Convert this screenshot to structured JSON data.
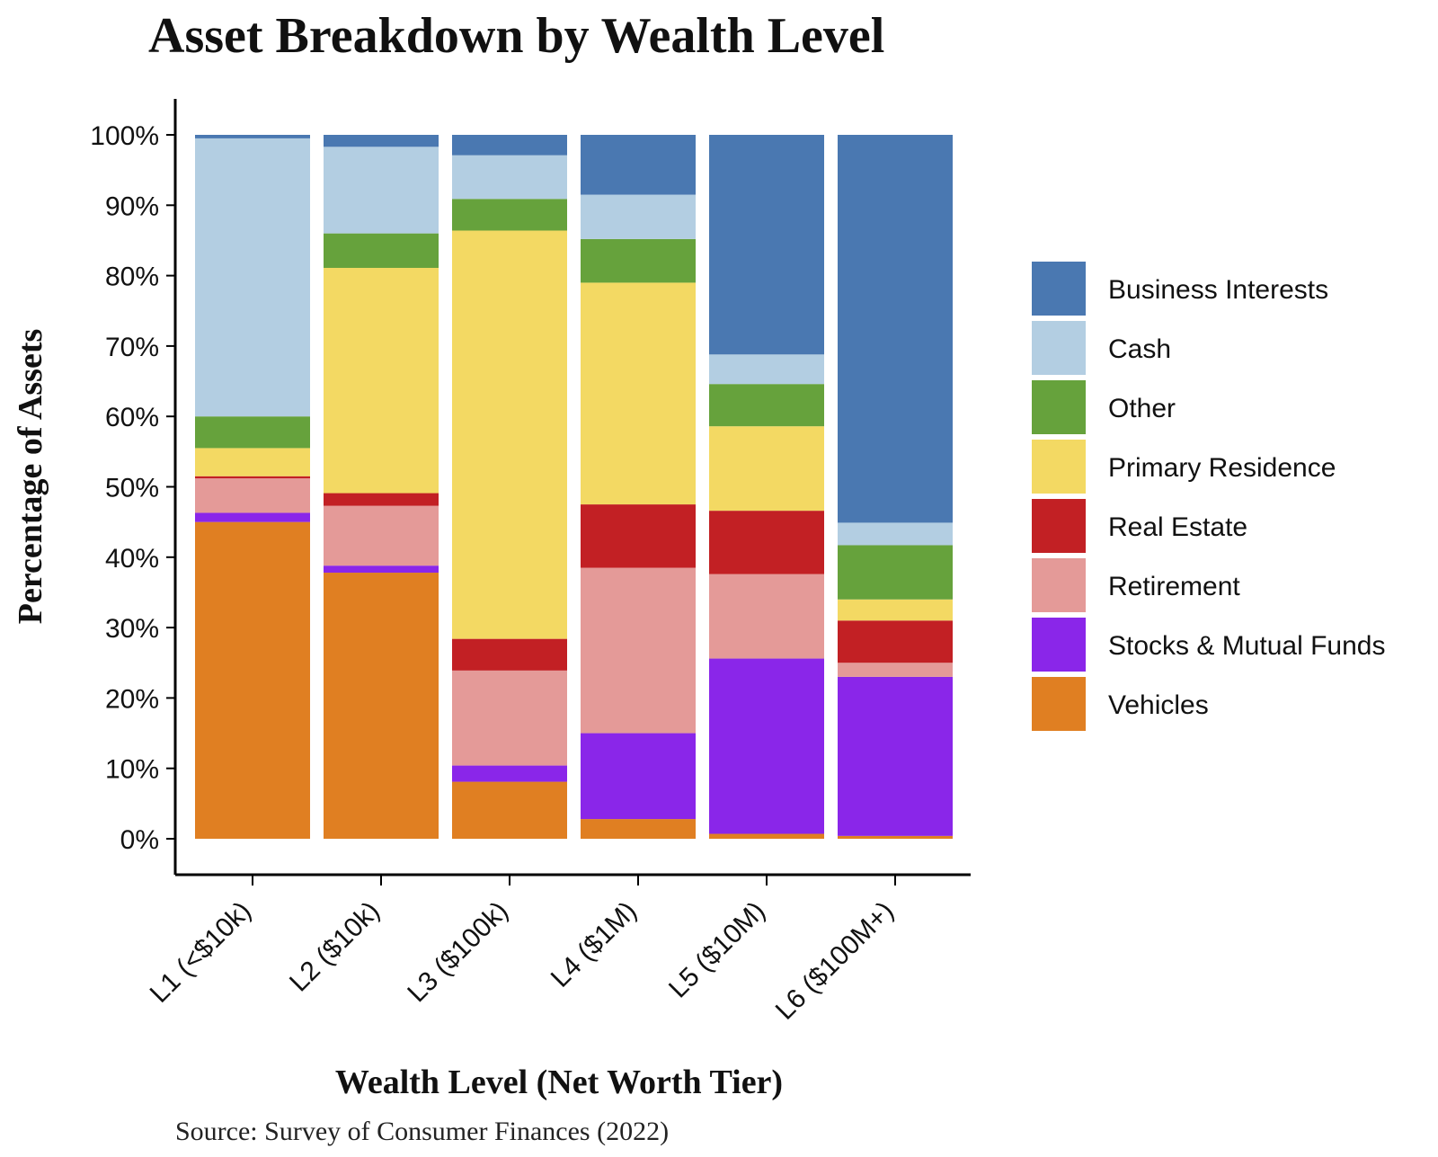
{
  "chart_data": {
    "type": "bar",
    "stacked": true,
    "normalized": true,
    "title": "Asset Breakdown by Wealth Level",
    "xlabel": "Wealth Level (Net Worth Tier)",
    "ylabel": "Percentage of Assets",
    "source": "Source: Survey of Consumer Finances (2022)",
    "ylim": [
      0,
      100
    ],
    "yticks": [
      0,
      10,
      20,
      30,
      40,
      50,
      60,
      70,
      80,
      90,
      100
    ],
    "ytick_labels": [
      "0%",
      "10%",
      "20%",
      "30%",
      "40%",
      "50%",
      "60%",
      "70%",
      "80%",
      "90%",
      "100%"
    ],
    "categories": [
      "L1 (<$10k)",
      "L2 ($10k)",
      "L3 ($100k)",
      "L4 ($1M)",
      "L5 ($10M)",
      "L6 ($100M+)"
    ],
    "legend_position": "right",
    "series": [
      {
        "name": "Vehicles",
        "color": "#E07F22",
        "values": [
          45.0,
          37.8,
          8.1,
          2.8,
          0.7,
          0.4
        ]
      },
      {
        "name": "Stocks & Mutual Funds",
        "color": "#8A26E9",
        "values": [
          1.3,
          1.0,
          2.3,
          12.2,
          24.9,
          22.6
        ]
      },
      {
        "name": "Retirement",
        "color": "#E49A98",
        "values": [
          4.9,
          8.5,
          13.5,
          23.5,
          12.0,
          2.0
        ]
      },
      {
        "name": "Real Estate",
        "color": "#C22024",
        "values": [
          0.3,
          1.8,
          4.5,
          9.0,
          9.0,
          6.0
        ]
      },
      {
        "name": "Primary Residence",
        "color": "#F3D963",
        "values": [
          4.0,
          32.0,
          58.0,
          31.5,
          12.0,
          3.0
        ]
      },
      {
        "name": "Other",
        "color": "#66A23C",
        "values": [
          4.5,
          4.9,
          4.5,
          6.2,
          6.0,
          7.7
        ]
      },
      {
        "name": "Cash",
        "color": "#B3CEE2",
        "values": [
          39.5,
          12.3,
          6.2,
          6.3,
          4.2,
          3.2
        ]
      },
      {
        "name": "Business Interests",
        "color": "#4A78B1",
        "values": [
          0.5,
          1.7,
          2.9,
          8.5,
          31.2,
          55.1
        ]
      }
    ]
  }
}
